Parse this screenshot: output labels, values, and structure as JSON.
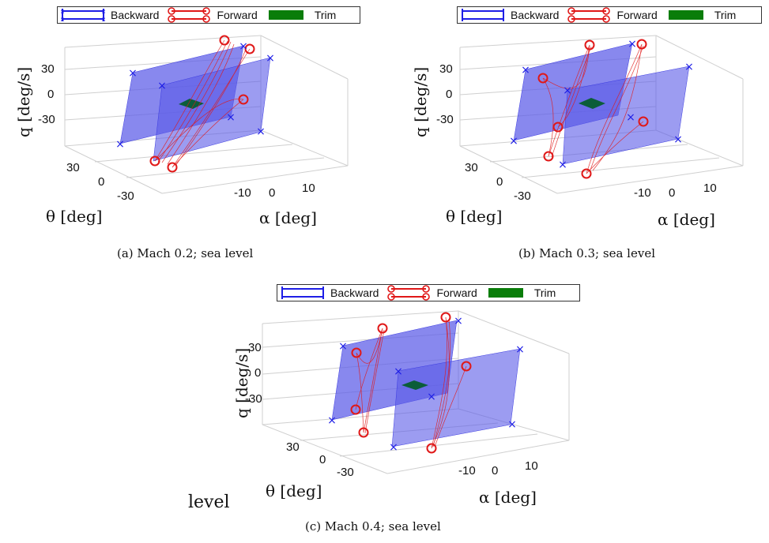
{
  "legend": {
    "backward": "Backward",
    "forward": "Forward",
    "trim": "Trim"
  },
  "colors": {
    "backward": "#1e1ee6",
    "forward": "#e01818",
    "trim": "#0a7d0a",
    "surface": "#5a5ae8"
  },
  "axes": {
    "q_label": "q [deg/s]",
    "theta_label": "θ [deg]",
    "alpha_label": "α [deg]",
    "q_ticks": [
      "30",
      "0",
      "-30"
    ],
    "theta_ticks": [
      "30",
      "0",
      "-30"
    ],
    "alpha_ticks": [
      "-10",
      "0",
      "10"
    ]
  },
  "panels": [
    {
      "caption": "(a)  Mach 0.2; sea level"
    },
    {
      "caption": "(b)  Mach 0.3; sea level"
    },
    {
      "caption": "(c)  Mach 0.4; sea level"
    }
  ],
  "stray_text": "level"
}
